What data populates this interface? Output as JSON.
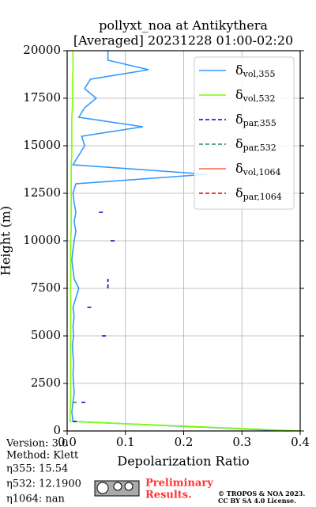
{
  "chart_data": {
    "type": "profile",
    "title": [
      "pollyxt_noa at Antikythera",
      "[Averaged] 20231228 01:00-02:20"
    ],
    "x_label": "Depolarization Ratio",
    "y_label": "Height (m)",
    "xlim": [
      0,
      0.4
    ],
    "ylim": [
      0,
      20000
    ],
    "xticks": [
      {
        "value": 0,
        "label": "0.0"
      },
      0.1,
      0.2,
      0.3,
      0.4
    ],
    "yticks": [
      0,
      2500,
      5000,
      7500,
      10000,
      12500,
      15000,
      17500,
      20000
    ],
    "grid": true,
    "legend": "upper right",
    "heights": [
      0,
      500,
      1000,
      1500,
      2000,
      2500,
      3000,
      3500,
      4000,
      4500,
      5000,
      5500,
      6000,
      6500,
      7000,
      7500,
      8000,
      8500,
      9000,
      9500,
      10000,
      10500,
      11000,
      11500,
      12000,
      12500,
      13000,
      13500,
      14000,
      14500,
      15000,
      15500,
      16000,
      16500,
      17000,
      17500,
      18000,
      18500,
      19000,
      19500,
      20000
    ],
    "series": [
      {
        "name": "δvol,355",
        "color": "#3399ff",
        "dash": "solid",
        "values": [
          0.38,
          0.01,
          0.008,
          0.01,
          0.012,
          0.011,
          0.01,
          0.011,
          0.01,
          0.009,
          0.011,
          0.01,
          0.012,
          0.01,
          0.015,
          0.02,
          0.012,
          0.01,
          0.008,
          0.01,
          0.012,
          0.015,
          0.012,
          0.015,
          0.012,
          0.01,
          0.015,
          0.24,
          0.01,
          0.02,
          0.03,
          0.025,
          0.13,
          0.02,
          0.03,
          0.05,
          0.03,
          0.04,
          0.14,
          0.07,
          0.07
        ]
      },
      {
        "name": "δvol,532",
        "color": "#7fff00",
        "dash": "solid",
        "values": [
          0.4,
          0.005,
          0.005,
          0.006,
          0.006,
          0.006,
          0.006,
          0.006,
          0.006,
          0.006,
          0.006,
          0.006,
          0.006,
          0.006,
          0.006,
          0.006,
          0.006,
          0.006,
          0.006,
          0.006,
          0.006,
          0.007,
          0.007,
          0.007,
          0.007,
          0.007,
          0.007,
          0.007,
          0.007,
          0.008,
          0.008,
          0.008,
          0.008,
          0.008,
          0.009,
          0.009,
          0.009,
          0.009,
          0.01,
          0.01,
          0.01
        ]
      },
      {
        "name": "δpar,355",
        "color": "#0000cc",
        "dash": "dashed",
        "values": [
          null,
          0.015,
          null,
          0.03,
          null,
          null,
          null,
          null,
          null,
          null,
          0.065,
          null,
          null,
          0.04,
          null,
          0.07,
          0.07,
          null,
          null,
          null,
          0.08,
          null,
          null,
          0.06,
          null,
          null,
          null,
          null,
          null,
          null,
          null,
          null,
          null,
          null,
          null,
          null,
          null,
          null,
          null,
          null,
          null
        ]
      },
      {
        "name": "δpar,532",
        "color": "#2e8b57",
        "dash": "dashed",
        "values": [
          null,
          null,
          null,
          0.015,
          null,
          null,
          null,
          null,
          null,
          null,
          null,
          null,
          null,
          null,
          null,
          null,
          null,
          null,
          null,
          null,
          null,
          null,
          null,
          null,
          null,
          null,
          null,
          null,
          null,
          null,
          null,
          null,
          null,
          null,
          null,
          null,
          null,
          null,
          null,
          null,
          null
        ]
      },
      {
        "name": "δvol,1064",
        "color": "#ff6347",
        "dash": "solid",
        "values": [
          null,
          null,
          null,
          null,
          null,
          null,
          null,
          null,
          null,
          null,
          null,
          null,
          null,
          null,
          null,
          null,
          null,
          null,
          null,
          null,
          null,
          null,
          null,
          null,
          null,
          null,
          null,
          null,
          null,
          null,
          null,
          null,
          null,
          null,
          null,
          null,
          null,
          null,
          null,
          null,
          null
        ]
      },
      {
        "name": "δpar,1064",
        "color": "#dd0000",
        "dash": "dashed",
        "values": [
          null,
          null,
          null,
          null,
          null,
          null,
          null,
          null,
          null,
          null,
          null,
          null,
          null,
          null,
          null,
          null,
          null,
          null,
          null,
          null,
          null,
          null,
          null,
          null,
          null,
          null,
          null,
          null,
          null,
          null,
          null,
          null,
          null,
          null,
          null,
          null,
          null,
          null,
          null,
          null,
          null
        ]
      }
    ],
    "annotations": [
      "Version: 3.0",
      "Method: Klett",
      "η355:  15.54",
      "η532: 12.1900",
      "η1064:    nan"
    ],
    "badge": [
      "Preliminary",
      "Results."
    ],
    "license": [
      "© TROPOS & NOA 2023.",
      "CC BY SA 4.0 License."
    ]
  }
}
